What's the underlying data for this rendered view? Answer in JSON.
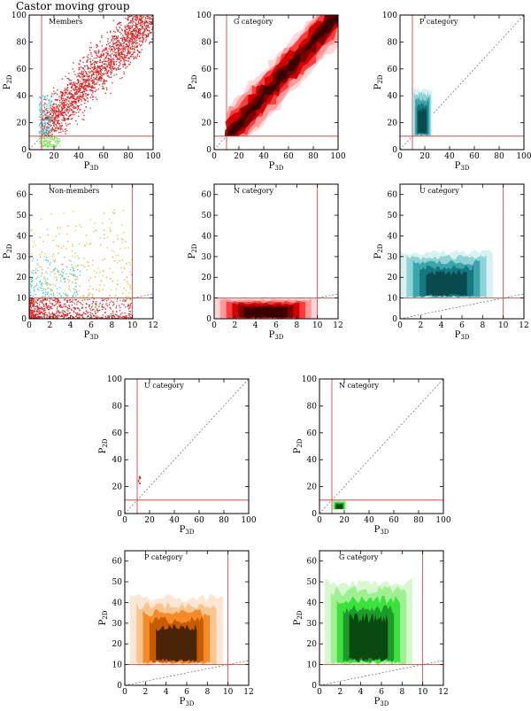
{
  "figure_title": "Castor moving group",
  "colors": {
    "axis": "#000000",
    "guide": "#cc3333",
    "diagonal": "#666666",
    "member_point": "#e02020",
    "non_member_point_yellow": "#c9d23a",
    "non_member_point_cyan": "#3ad1d1",
    "non_member_point_orange": "#f0a040",
    "green_point": "#7ee05a",
    "red_levels": [
      "#ffd5d5",
      "#ff9a9a",
      "#ff3b3b",
      "#d40000",
      "#7a0000",
      "#3a0000"
    ],
    "teal_levels": [
      "#d8f2f2",
      "#8fd3d6",
      "#3aa6ac",
      "#137a80",
      "#0a4a4e"
    ],
    "orange_levels": [
      "#fbe7d3",
      "#f7c690",
      "#f58b26",
      "#c85a00",
      "#4a2408"
    ],
    "green_levels": [
      "#d8f8cf",
      "#9ff090",
      "#3ce23c",
      "#1c9a2a",
      "#0a4a10"
    ]
  },
  "chart_data": [
    {
      "id": "members",
      "type": "scatter",
      "label": "Members",
      "xlabel": "P3D",
      "ylabel": "P2D",
      "xlim": [
        0,
        100
      ],
      "ylim": [
        0,
        100
      ],
      "xticks": [
        0,
        20,
        40,
        60,
        80,
        100
      ],
      "yticks": [
        0,
        20,
        40,
        60,
        80,
        100
      ],
      "guides": {
        "x": 10,
        "y": 10
      },
      "diagonal": true,
      "fill": "points",
      "series": [
        {
          "color": "member_point",
          "count": 2000,
          "x_range": [
            10,
            100
          ],
          "y_range": [
            10,
            100
          ],
          "pattern": "diagonal-band"
        },
        {
          "color": "non_member_point_cyan",
          "count": 140,
          "x_range": [
            8,
            18
          ],
          "y_range": [
            10,
            40
          ],
          "pattern": "cluster"
        },
        {
          "color": "green_point",
          "count": 120,
          "x_range": [
            8,
            25
          ],
          "y_range": [
            2,
            10
          ],
          "pattern": "cluster"
        }
      ]
    },
    {
      "id": "g-category-top",
      "type": "contour",
      "label": "G category",
      "xlabel": "P3D",
      "ylabel": "P2D",
      "xlim": [
        0,
        100
      ],
      "ylim": [
        0,
        100
      ],
      "xticks": [
        0,
        20,
        40,
        60,
        80,
        100
      ],
      "yticks": [
        0,
        20,
        40,
        60,
        80,
        100
      ],
      "guides": {
        "x": 10,
        "y": 10
      },
      "diagonal": true,
      "palette": "red_levels",
      "fill": "region",
      "region": {
        "x_range": [
          10,
          100
        ],
        "y_range": [
          10,
          100
        ],
        "shape": "diagonal-band"
      }
    },
    {
      "id": "p-category-top",
      "type": "contour",
      "label": "P category",
      "xlabel": "P3D",
      "ylabel": "P2D",
      "xlim": [
        0,
        100
      ],
      "ylim": [
        0,
        100
      ],
      "xticks": [
        0,
        20,
        40,
        60,
        80,
        100
      ],
      "yticks": [
        0,
        20,
        40,
        60,
        80,
        100
      ],
      "guides": {
        "x": 10,
        "y": 10
      },
      "diagonal": true,
      "palette": "teal_levels",
      "fill": "region",
      "region": {
        "x_range": [
          10,
          26
        ],
        "y_range": [
          10,
          45
        ],
        "shape": "blob"
      }
    },
    {
      "id": "non-members",
      "type": "scatter",
      "label": "Non-members",
      "xlabel": "P3D",
      "ylabel": "P2D",
      "xlim": [
        0,
        12
      ],
      "ylim": [
        0,
        65
      ],
      "xticks": [
        0,
        2,
        4,
        6,
        8,
        10,
        12
      ],
      "yticks": [
        0,
        10,
        20,
        30,
        40,
        50,
        60
      ],
      "guides": {
        "x": 10,
        "y": 10
      },
      "diagonal": true,
      "fill": "points",
      "series": [
        {
          "color": "member_point",
          "count": 700,
          "x_range": [
            0,
            10
          ],
          "y_range": [
            0,
            10
          ],
          "pattern": "corner"
        },
        {
          "color": "non_member_point_cyan",
          "count": 160,
          "x_range": [
            0,
            5
          ],
          "y_range": [
            10,
            30
          ],
          "pattern": "cluster"
        },
        {
          "color": "non_member_point_yellow",
          "count": 170,
          "x_range": [
            0,
            10
          ],
          "y_range": [
            10,
            53
          ],
          "pattern": "cloud"
        },
        {
          "color": "non_member_point_orange",
          "count": 90,
          "x_range": [
            1,
            10
          ],
          "y_range": [
            10,
            45
          ],
          "pattern": "cloud"
        }
      ]
    },
    {
      "id": "n-category-top",
      "type": "contour",
      "label": "N category",
      "xlabel": "P3D",
      "ylabel": "P2D",
      "xlim": [
        0,
        12
      ],
      "ylim": [
        0,
        65
      ],
      "xticks": [
        0,
        2,
        4,
        6,
        8,
        10,
        12
      ],
      "yticks": [
        0,
        10,
        20,
        30,
        40,
        50,
        60
      ],
      "guides": {
        "x": 10,
        "y": 10
      },
      "diagonal": true,
      "palette": "red_levels",
      "fill": "region",
      "region": {
        "x_range": [
          0,
          10
        ],
        "y_range": [
          0,
          10
        ],
        "shape": "floor"
      }
    },
    {
      "id": "u-category-top",
      "type": "contour",
      "label": "U category",
      "xlabel": "P3D",
      "ylabel": "P2D",
      "xlim": [
        0,
        12
      ],
      "ylim": [
        0,
        65
      ],
      "xticks": [
        0,
        2,
        4,
        6,
        8,
        10,
        12
      ],
      "yticks": [
        0,
        10,
        20,
        30,
        40,
        50,
        60
      ],
      "guides": {
        "x": 10,
        "y": 10
      },
      "diagonal": true,
      "palette": "teal_levels",
      "fill": "region",
      "region": {
        "x_range": [
          0,
          9
        ],
        "y_range": [
          10,
          32
        ],
        "shape": "band"
      }
    },
    {
      "id": "u-category-bottom",
      "type": "scatter",
      "label": "U category",
      "xlabel": "P3D",
      "ylabel": "P2D",
      "xlim": [
        0,
        100
      ],
      "ylim": [
        0,
        100
      ],
      "xticks": [
        0,
        20,
        40,
        60,
        80,
        100
      ],
      "yticks": [
        0,
        20,
        40,
        60,
        80,
        100
      ],
      "guides": {
        "x": 10,
        "y": 10
      },
      "diagonal": true,
      "fill": "points",
      "series": [
        {
          "color": "member_point",
          "count": 14,
          "x_range": [
            11,
            13
          ],
          "y_range": [
            22,
            28
          ],
          "pattern": "cluster"
        }
      ]
    },
    {
      "id": "n-category-bottom",
      "type": "contour",
      "label": "N category",
      "xlabel": "P3D",
      "ylabel": "P2D",
      "xlim": [
        0,
        100
      ],
      "ylim": [
        0,
        100
      ],
      "xticks": [
        0,
        20,
        40,
        60,
        80,
        100
      ],
      "yticks": [
        0,
        20,
        40,
        60,
        80,
        100
      ],
      "guides": {
        "x": 10,
        "y": 10
      },
      "diagonal": true,
      "palette": "green_levels",
      "fill": "region",
      "region": {
        "x_range": [
          10,
          22
        ],
        "y_range": [
          3,
          10
        ],
        "shape": "blob"
      }
    },
    {
      "id": "p-category-bottom",
      "type": "contour",
      "label": "P category",
      "xlabel": "P3D",
      "ylabel": "P2D",
      "xlim": [
        0,
        12
      ],
      "ylim": [
        0,
        65
      ],
      "xticks": [
        0,
        2,
        4,
        6,
        8,
        10,
        12
      ],
      "yticks": [
        0,
        10,
        20,
        30,
        40,
        50,
        60
      ],
      "guides": {
        "x": 10,
        "y": 10
      },
      "diagonal": true,
      "palette": "orange_levels",
      "fill": "region",
      "region": {
        "x_range": [
          0.5,
          9.5
        ],
        "y_range": [
          10,
          42
        ],
        "shape": "band"
      }
    },
    {
      "id": "g-category-bottom",
      "type": "contour",
      "label": "G category",
      "xlabel": "P3D",
      "ylabel": "P2D",
      "xlim": [
        0,
        12
      ],
      "ylim": [
        0,
        65
      ],
      "xticks": [
        0,
        2,
        4,
        6,
        8,
        10,
        12
      ],
      "yticks": [
        0,
        10,
        20,
        30,
        40,
        50,
        60
      ],
      "guides": {
        "x": 10,
        "y": 10
      },
      "diagonal": true,
      "palette": "green_levels",
      "fill": "region",
      "region": {
        "x_range": [
          0.5,
          9
        ],
        "y_range": [
          10,
          50
        ],
        "shape": "band"
      }
    }
  ]
}
